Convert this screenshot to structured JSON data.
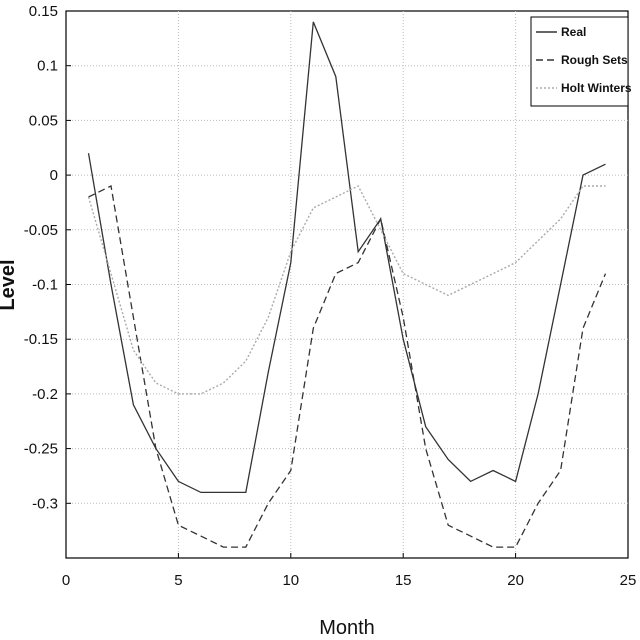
{
  "chart_data": {
    "type": "line",
    "title": "",
    "xlabel": "Month",
    "ylabel": "Level",
    "xlim": [
      0,
      25
    ],
    "ylim": [
      -0.35,
      0.15
    ],
    "xticks": [
      0,
      5,
      10,
      15,
      20,
      25
    ],
    "xtick_labels": [
      "0",
      "5",
      "10",
      "15",
      "20",
      "25"
    ],
    "yticks": [
      0.15,
      0.1,
      0.05,
      0,
      -0.05,
      -0.1,
      -0.15,
      -0.2,
      -0.25,
      -0.3
    ],
    "ytick_labels": [
      "0.15",
      "0.1",
      "0.05",
      "0",
      "-0.05",
      "-0.1",
      "-0.15",
      "-0.2",
      "-0.25",
      "-0.3"
    ],
    "grid": true,
    "legend_position": "top-right",
    "x": [
      1,
      2,
      3,
      4,
      5,
      6,
      7,
      8,
      9,
      10,
      11,
      12,
      13,
      14,
      15,
      16,
      17,
      18,
      19,
      20,
      21,
      22,
      23,
      24
    ],
    "series": [
      {
        "name": "Real",
        "style": "solid",
        "color": "#333333",
        "values": [
          0.02,
          -0.1,
          -0.21,
          -0.25,
          -0.28,
          -0.29,
          -0.29,
          -0.29,
          -0.18,
          -0.08,
          0.14,
          0.09,
          -0.07,
          -0.04,
          -0.15,
          -0.23,
          -0.26,
          -0.28,
          -0.27,
          -0.28,
          -0.2,
          -0.1,
          0.0,
          0.01
        ]
      },
      {
        "name": "Rough Sets",
        "style": "dashed",
        "color": "#333333",
        "values": [
          -0.02,
          -0.01,
          -0.13,
          -0.25,
          -0.32,
          -0.33,
          -0.34,
          -0.34,
          -0.3,
          -0.27,
          -0.14,
          -0.09,
          -0.08,
          -0.04,
          -0.13,
          -0.25,
          -0.32,
          -0.33,
          -0.34,
          -0.34,
          -0.3,
          -0.27,
          -0.14,
          -0.09
        ]
      },
      {
        "name": "Holt Winters",
        "style": "dotted",
        "color": "#aaaaaa",
        "values": [
          -0.02,
          -0.09,
          -0.16,
          -0.19,
          -0.2,
          -0.2,
          -0.19,
          -0.17,
          -0.13,
          -0.07,
          -0.03,
          -0.02,
          -0.01,
          -0.05,
          -0.09,
          -0.1,
          -0.11,
          -0.1,
          -0.09,
          -0.08,
          -0.06,
          -0.04,
          -0.01,
          -0.01
        ]
      }
    ]
  }
}
